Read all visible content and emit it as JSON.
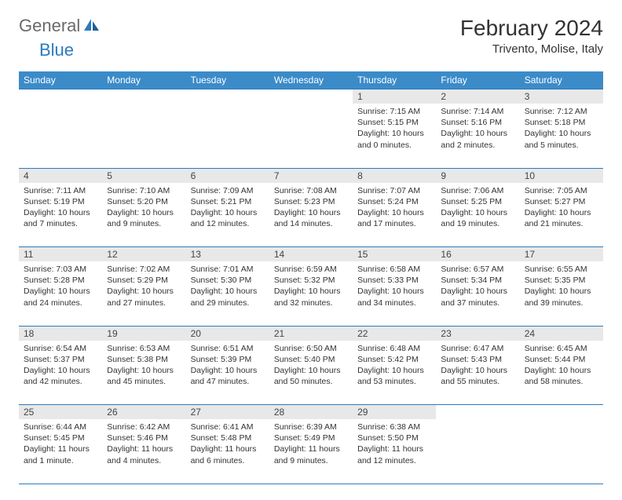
{
  "logo": {
    "text1": "General",
    "text2": "Blue"
  },
  "title": "February 2024",
  "location": "Trivento, Molise, Italy",
  "header_color": "#3b8bc9",
  "daynum_bg": "#e8e8e8",
  "border_color": "#2b7bbf",
  "weekdays": [
    "Sunday",
    "Monday",
    "Tuesday",
    "Wednesday",
    "Thursday",
    "Friday",
    "Saturday"
  ],
  "weeks": [
    [
      null,
      null,
      null,
      null,
      {
        "n": "1",
        "sr": "7:15 AM",
        "ss": "5:15 PM",
        "dl": "10 hours and 0 minutes."
      },
      {
        "n": "2",
        "sr": "7:14 AM",
        "ss": "5:16 PM",
        "dl": "10 hours and 2 minutes."
      },
      {
        "n": "3",
        "sr": "7:12 AM",
        "ss": "5:18 PM",
        "dl": "10 hours and 5 minutes."
      }
    ],
    [
      {
        "n": "4",
        "sr": "7:11 AM",
        "ss": "5:19 PM",
        "dl": "10 hours and 7 minutes."
      },
      {
        "n": "5",
        "sr": "7:10 AM",
        "ss": "5:20 PM",
        "dl": "10 hours and 9 minutes."
      },
      {
        "n": "6",
        "sr": "7:09 AM",
        "ss": "5:21 PM",
        "dl": "10 hours and 12 minutes."
      },
      {
        "n": "7",
        "sr": "7:08 AM",
        "ss": "5:23 PM",
        "dl": "10 hours and 14 minutes."
      },
      {
        "n": "8",
        "sr": "7:07 AM",
        "ss": "5:24 PM",
        "dl": "10 hours and 17 minutes."
      },
      {
        "n": "9",
        "sr": "7:06 AM",
        "ss": "5:25 PM",
        "dl": "10 hours and 19 minutes."
      },
      {
        "n": "10",
        "sr": "7:05 AM",
        "ss": "5:27 PM",
        "dl": "10 hours and 21 minutes."
      }
    ],
    [
      {
        "n": "11",
        "sr": "7:03 AM",
        "ss": "5:28 PM",
        "dl": "10 hours and 24 minutes."
      },
      {
        "n": "12",
        "sr": "7:02 AM",
        "ss": "5:29 PM",
        "dl": "10 hours and 27 minutes."
      },
      {
        "n": "13",
        "sr": "7:01 AM",
        "ss": "5:30 PM",
        "dl": "10 hours and 29 minutes."
      },
      {
        "n": "14",
        "sr": "6:59 AM",
        "ss": "5:32 PM",
        "dl": "10 hours and 32 minutes."
      },
      {
        "n": "15",
        "sr": "6:58 AM",
        "ss": "5:33 PM",
        "dl": "10 hours and 34 minutes."
      },
      {
        "n": "16",
        "sr": "6:57 AM",
        "ss": "5:34 PM",
        "dl": "10 hours and 37 minutes."
      },
      {
        "n": "17",
        "sr": "6:55 AM",
        "ss": "5:35 PM",
        "dl": "10 hours and 39 minutes."
      }
    ],
    [
      {
        "n": "18",
        "sr": "6:54 AM",
        "ss": "5:37 PM",
        "dl": "10 hours and 42 minutes."
      },
      {
        "n": "19",
        "sr": "6:53 AM",
        "ss": "5:38 PM",
        "dl": "10 hours and 45 minutes."
      },
      {
        "n": "20",
        "sr": "6:51 AM",
        "ss": "5:39 PM",
        "dl": "10 hours and 47 minutes."
      },
      {
        "n": "21",
        "sr": "6:50 AM",
        "ss": "5:40 PM",
        "dl": "10 hours and 50 minutes."
      },
      {
        "n": "22",
        "sr": "6:48 AM",
        "ss": "5:42 PM",
        "dl": "10 hours and 53 minutes."
      },
      {
        "n": "23",
        "sr": "6:47 AM",
        "ss": "5:43 PM",
        "dl": "10 hours and 55 minutes."
      },
      {
        "n": "24",
        "sr": "6:45 AM",
        "ss": "5:44 PM",
        "dl": "10 hours and 58 minutes."
      }
    ],
    [
      {
        "n": "25",
        "sr": "6:44 AM",
        "ss": "5:45 PM",
        "dl": "11 hours and 1 minute."
      },
      {
        "n": "26",
        "sr": "6:42 AM",
        "ss": "5:46 PM",
        "dl": "11 hours and 4 minutes."
      },
      {
        "n": "27",
        "sr": "6:41 AM",
        "ss": "5:48 PM",
        "dl": "11 hours and 6 minutes."
      },
      {
        "n": "28",
        "sr": "6:39 AM",
        "ss": "5:49 PM",
        "dl": "11 hours and 9 minutes."
      },
      {
        "n": "29",
        "sr": "6:38 AM",
        "ss": "5:50 PM",
        "dl": "11 hours and 12 minutes."
      },
      null,
      null
    ]
  ],
  "labels": {
    "sunrise": "Sunrise:",
    "sunset": "Sunset:",
    "daylight": "Daylight:"
  }
}
